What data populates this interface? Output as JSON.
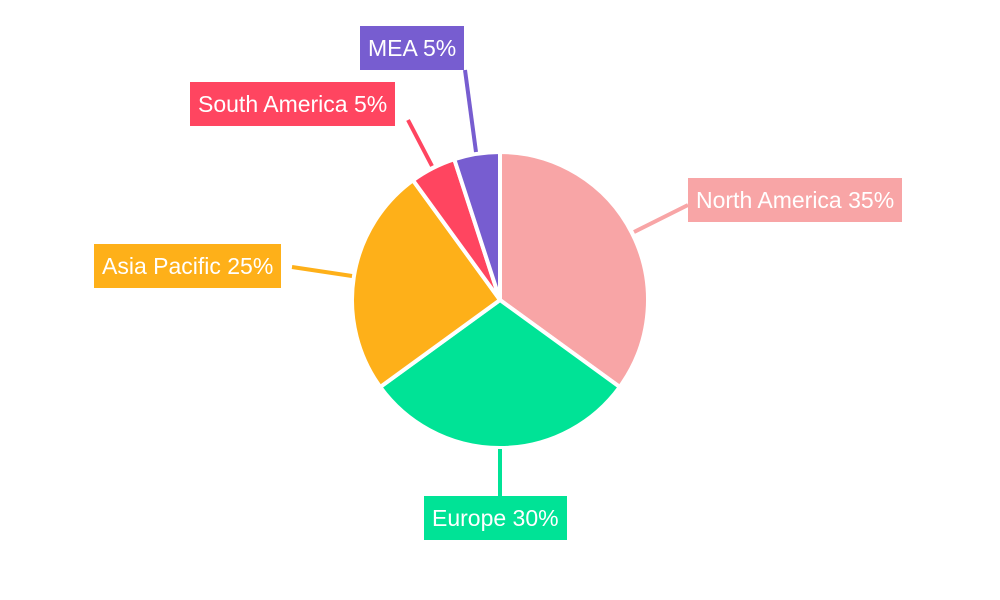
{
  "chart_data": {
    "type": "pie",
    "categories": [
      "North America",
      "Europe",
      "Asia Pacific",
      "South America",
      "MEA"
    ],
    "values": [
      35,
      30,
      25,
      5,
      5
    ],
    "colors": [
      "#F8A5A6",
      "#00E396",
      "#FEB019",
      "#FF4560",
      "#775DD0"
    ],
    "labels": [
      "North America 35%",
      "Europe 30%",
      "Asia Pacific 25%",
      "South America 5%",
      "MEA 5%"
    ],
    "start_angle": "top, clockwise",
    "legend": "none"
  }
}
